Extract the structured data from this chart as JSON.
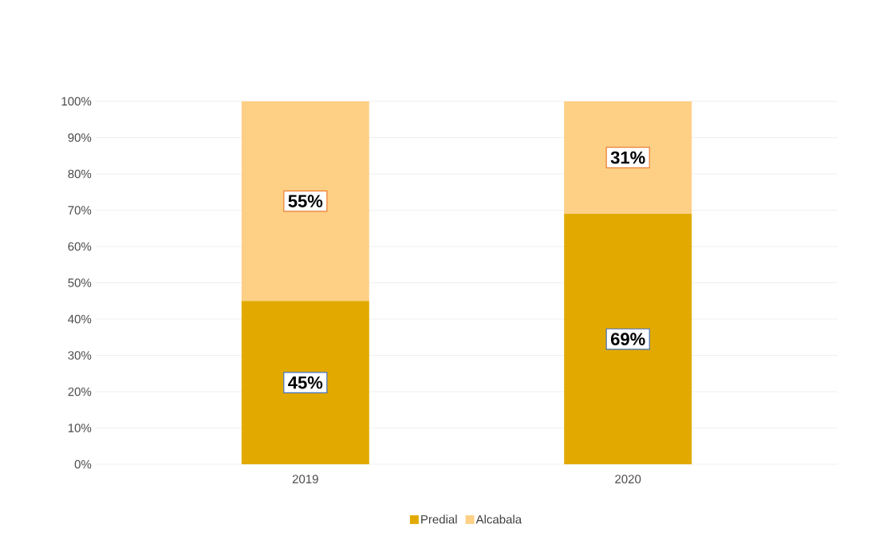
{
  "chart_data": {
    "type": "bar",
    "stacked": true,
    "categories": [
      "2019",
      "2020"
    ],
    "series": [
      {
        "name": "Predial",
        "color": "#e2aa00",
        "values": [
          45,
          69
        ],
        "value_labels": [
          "45%",
          "69%"
        ]
      },
      {
        "name": "Alcabala",
        "color": "#fdd086",
        "values": [
          55,
          31
        ],
        "value_labels": [
          "55%",
          "31%"
        ]
      }
    ],
    "ylim": [
      0,
      100
    ],
    "yticks": [
      {
        "value": 0,
        "label": "0%"
      },
      {
        "value": 10,
        "label": "10%"
      },
      {
        "value": 20,
        "label": "20%"
      },
      {
        "value": 30,
        "label": "30%"
      },
      {
        "value": 40,
        "label": "40%"
      },
      {
        "value": 50,
        "label": "50%"
      },
      {
        "value": 60,
        "label": "60%"
      },
      {
        "value": 70,
        "label": "70%"
      },
      {
        "value": 80,
        "label": "80%"
      },
      {
        "value": 90,
        "label": "90%"
      },
      {
        "value": 100,
        "label": "100%"
      }
    ],
    "grid": "y",
    "legend": "bottom"
  }
}
